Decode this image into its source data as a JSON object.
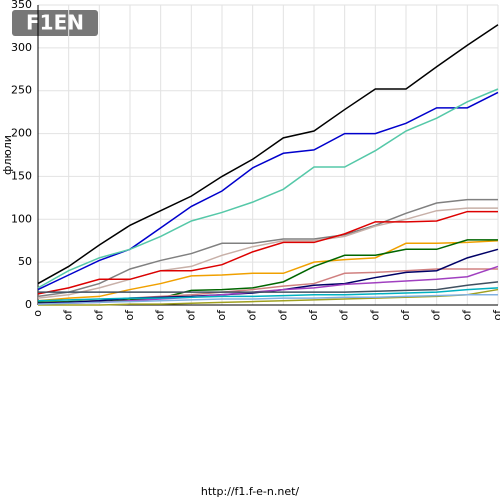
{
  "logo": "F1EN",
  "footer": "http://f1.f-e-n.net/",
  "chart_data": {
    "type": "line",
    "y_label": "флюли",
    "categories": [
      "o",
      "of",
      "of",
      "of",
      "of",
      "of",
      "of",
      "of",
      "of",
      "of",
      "of",
      "of",
      "of",
      "of",
      "of",
      "of"
    ],
    "ylim": [
      0,
      350
    ],
    "yticks": [
      0,
      50,
      100,
      150,
      200,
      250,
      300,
      350
    ],
    "grid": true,
    "series": [
      {
        "color": "#000000",
        "values": [
          25,
          45,
          70,
          93,
          110,
          127,
          150,
          170,
          195,
          203,
          228,
          252,
          252,
          278,
          303,
          327
        ]
      },
      {
        "color": "#0000cc",
        "values": [
          18,
          35,
          52,
          65,
          90,
          115,
          133,
          160,
          177,
          181,
          200,
          200,
          212,
          230,
          230,
          248
        ]
      },
      {
        "color": "#55c8a8",
        "values": [
          20,
          40,
          55,
          65,
          80,
          98,
          108,
          120,
          135,
          161,
          161,
          180,
          203,
          218,
          237,
          252
        ]
      },
      {
        "color": "#808080",
        "values": [
          10,
          15,
          25,
          42,
          52,
          60,
          72,
          72,
          77,
          77,
          82,
          93,
          107,
          119,
          123,
          123
        ]
      },
      {
        "color": "#c8b0a8",
        "values": [
          8,
          12,
          20,
          30,
          40,
          45,
          58,
          68,
          75,
          75,
          80,
          92,
          100,
          110,
          113,
          113
        ]
      },
      {
        "color": "#dd0000",
        "values": [
          13,
          20,
          30,
          30,
          40,
          40,
          47,
          62,
          73,
          73,
          83,
          97,
          97,
          98,
          109,
          109
        ]
      },
      {
        "color": "#f0a000",
        "values": [
          5,
          8,
          10,
          18,
          25,
          34,
          35,
          37,
          37,
          50,
          53,
          55,
          72,
          72,
          73,
          75
        ]
      },
      {
        "color": "#006600",
        "values": [
          3,
          4,
          5,
          6,
          8,
          17,
          18,
          20,
          27,
          45,
          58,
          58,
          65,
          65,
          76,
          76
        ]
      },
      {
        "color": "#d08080",
        "values": [
          2,
          3,
          5,
          8,
          10,
          12,
          15,
          18,
          22,
          25,
          37,
          38,
          40,
          42,
          42,
          42
        ]
      },
      {
        "color": "#000066",
        "values": [
          2,
          3,
          5,
          8,
          9,
          10,
          12,
          14,
          18,
          23,
          25,
          32,
          38,
          40,
          55,
          65
        ]
      },
      {
        "color": "#a040c0",
        "values": [
          1,
          2,
          3,
          5,
          7,
          9,
          12,
          15,
          18,
          20,
          24,
          26,
          28,
          30,
          33,
          45
        ]
      },
      {
        "color": "#405060",
        "values": [
          15,
          15,
          15,
          15,
          15,
          15,
          15,
          15,
          15,
          15,
          15,
          16,
          17,
          18,
          23,
          27
        ]
      },
      {
        "color": "#00b0c0",
        "values": [
          5,
          6,
          7,
          8,
          8,
          9,
          10,
          10,
          11,
          12,
          12,
          13,
          14,
          15,
          18,
          20
        ]
      },
      {
        "color": "#a0a020",
        "values": [
          0,
          0,
          0,
          1,
          1,
          2,
          3,
          4,
          5,
          6,
          7,
          8,
          9,
          10,
          12,
          18
        ]
      },
      {
        "color": "#80b0e0",
        "values": [
          1,
          2,
          3,
          4,
          5,
          6,
          7,
          7,
          8,
          8,
          9,
          9,
          10,
          11,
          12,
          12
        ]
      }
    ]
  }
}
